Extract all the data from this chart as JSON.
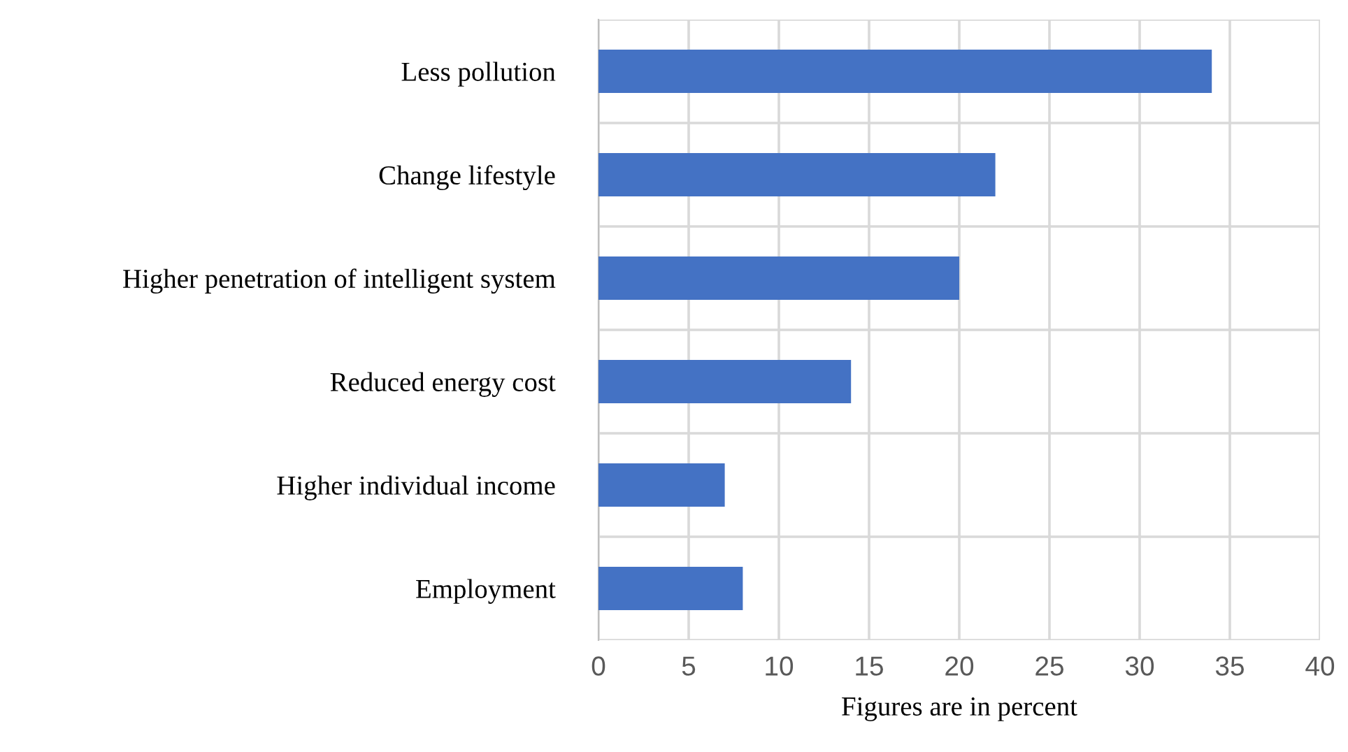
{
  "chart_data": {
    "type": "bar",
    "orientation": "horizontal",
    "categories": [
      "Less pollution",
      "Change lifestyle",
      "Higher penetration of intelligent system",
      "Reduced energy cost",
      "Higher individual income",
      "Employment"
    ],
    "values": [
      34,
      22,
      20,
      14,
      7,
      8
    ],
    "color": "#4472c4",
    "xlim": [
      0,
      40
    ],
    "xticks": [
      0,
      5,
      10,
      15,
      20,
      25,
      30,
      35,
      40
    ],
    "xlabel": "Figures are in percent",
    "grid": true
  }
}
